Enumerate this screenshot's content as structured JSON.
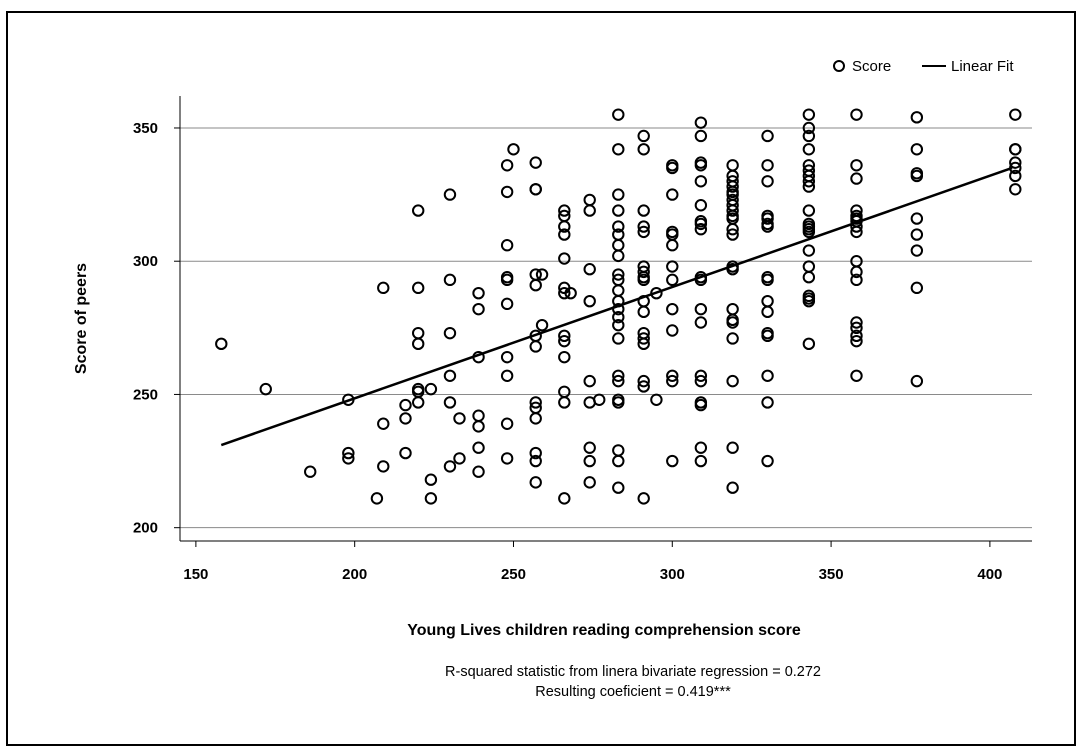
{
  "chart_data": {
    "type": "scatter",
    "title": "",
    "xlabel": "Young Lives children reading comprehension score",
    "ylabel": "Score of peers",
    "xlim": [
      145,
      412
    ],
    "ylim": [
      195,
      362
    ],
    "xticks": [
      150,
      200,
      250,
      300,
      350,
      400
    ],
    "yticks": [
      200,
      250,
      300,
      350
    ],
    "grid": "horizontal",
    "legend": {
      "placement": "top-right",
      "entries": [
        "Score",
        "Linear Fit"
      ]
    },
    "notes": [
      "R-squared statistic from linera bivariate regression = 0.272",
      "Resulting coeficient = 0.419***"
    ],
    "series": [
      {
        "name": "Score",
        "type": "scatter",
        "points": [
          [
            158,
            269
          ],
          [
            172,
            252
          ],
          [
            186,
            221
          ],
          [
            198,
            248
          ],
          [
            198,
            228
          ],
          [
            198,
            226
          ],
          [
            207,
            211
          ],
          [
            209,
            223
          ],
          [
            209,
            239
          ],
          [
            209,
            290
          ],
          [
            216,
            228
          ],
          [
            216,
            241
          ],
          [
            216,
            246
          ],
          [
            220,
            319
          ],
          [
            220,
            290
          ],
          [
            220,
            273
          ],
          [
            220,
            269
          ],
          [
            220,
            252
          ],
          [
            220,
            251
          ],
          [
            220,
            247
          ],
          [
            224,
            252
          ],
          [
            224,
            218
          ],
          [
            224,
            211
          ],
          [
            230,
            325
          ],
          [
            230,
            293
          ],
          [
            230,
            273
          ],
          [
            230,
            257
          ],
          [
            230,
            247
          ],
          [
            230,
            223
          ],
          [
            233,
            241
          ],
          [
            233,
            226
          ],
          [
            239,
            288
          ],
          [
            239,
            282
          ],
          [
            239,
            264
          ],
          [
            239,
            242
          ],
          [
            239,
            238
          ],
          [
            239,
            230
          ],
          [
            239,
            221
          ],
          [
            248,
            336
          ],
          [
            248,
            326
          ],
          [
            248,
            306
          ],
          [
            248,
            294
          ],
          [
            248,
            293
          ],
          [
            248,
            284
          ],
          [
            248,
            264
          ],
          [
            248,
            257
          ],
          [
            248,
            239
          ],
          [
            248,
            226
          ],
          [
            250,
            342
          ],
          [
            257,
            337
          ],
          [
            257,
            327
          ],
          [
            257,
            327
          ],
          [
            257,
            295
          ],
          [
            257,
            291
          ],
          [
            257,
            272
          ],
          [
            257,
            268
          ],
          [
            257,
            247
          ],
          [
            257,
            245
          ],
          [
            257,
            241
          ],
          [
            257,
            228
          ],
          [
            257,
            225
          ],
          [
            257,
            217
          ],
          [
            259,
            295
          ],
          [
            259,
            276
          ],
          [
            266,
            319
          ],
          [
            266,
            317
          ],
          [
            266,
            313
          ],
          [
            266,
            310
          ],
          [
            266,
            301
          ],
          [
            266,
            290
          ],
          [
            266,
            288
          ],
          [
            266,
            272
          ],
          [
            266,
            270
          ],
          [
            266,
            264
          ],
          [
            266,
            251
          ],
          [
            266,
            247
          ],
          [
            266,
            211
          ],
          [
            268,
            288
          ],
          [
            274,
            323
          ],
          [
            274,
            319
          ],
          [
            274,
            297
          ],
          [
            274,
            285
          ],
          [
            274,
            255
          ],
          [
            274,
            247
          ],
          [
            274,
            230
          ],
          [
            274,
            225
          ],
          [
            274,
            217
          ],
          [
            277,
            248
          ],
          [
            283,
            355
          ],
          [
            283,
            342
          ],
          [
            283,
            325
          ],
          [
            283,
            319
          ],
          [
            283,
            313
          ],
          [
            283,
            310
          ],
          [
            283,
            306
          ],
          [
            283,
            302
          ],
          [
            283,
            295
          ],
          [
            283,
            293
          ],
          [
            283,
            289
          ],
          [
            283,
            285
          ],
          [
            283,
            282
          ],
          [
            283,
            279
          ],
          [
            283,
            276
          ],
          [
            283,
            271
          ],
          [
            283,
            257
          ],
          [
            283,
            255
          ],
          [
            283,
            248
          ],
          [
            283,
            247
          ],
          [
            283,
            229
          ],
          [
            283,
            225
          ],
          [
            283,
            215
          ],
          [
            291,
            347
          ],
          [
            291,
            342
          ],
          [
            291,
            319
          ],
          [
            291,
            313
          ],
          [
            291,
            311
          ],
          [
            291,
            298
          ],
          [
            291,
            296
          ],
          [
            291,
            294
          ],
          [
            291,
            293
          ],
          [
            291,
            285
          ],
          [
            291,
            281
          ],
          [
            291,
            273
          ],
          [
            291,
            271
          ],
          [
            291,
            269
          ],
          [
            291,
            255
          ],
          [
            291,
            253
          ],
          [
            291,
            211
          ],
          [
            295,
            288
          ],
          [
            295,
            248
          ],
          [
            300,
            336
          ],
          [
            300,
            335
          ],
          [
            300,
            325
          ],
          [
            300,
            311
          ],
          [
            300,
            310
          ],
          [
            300,
            306
          ],
          [
            300,
            298
          ],
          [
            300,
            293
          ],
          [
            300,
            282
          ],
          [
            300,
            274
          ],
          [
            300,
            257
          ],
          [
            300,
            255
          ],
          [
            300,
            225
          ],
          [
            309,
            352
          ],
          [
            309,
            347
          ],
          [
            309,
            337
          ],
          [
            309,
            336
          ],
          [
            309,
            330
          ],
          [
            309,
            321
          ],
          [
            309,
            315
          ],
          [
            309,
            314
          ],
          [
            309,
            312
          ],
          [
            309,
            294
          ],
          [
            309,
            293
          ],
          [
            309,
            282
          ],
          [
            309,
            277
          ],
          [
            309,
            257
          ],
          [
            309,
            255
          ],
          [
            309,
            247
          ],
          [
            309,
            246
          ],
          [
            309,
            230
          ],
          [
            309,
            225
          ],
          [
            319,
            336
          ],
          [
            319,
            332
          ],
          [
            319,
            330
          ],
          [
            319,
            328
          ],
          [
            319,
            326
          ],
          [
            319,
            325
          ],
          [
            319,
            323
          ],
          [
            319,
            321
          ],
          [
            319,
            319
          ],
          [
            319,
            317
          ],
          [
            319,
            316
          ],
          [
            319,
            312
          ],
          [
            319,
            310
          ],
          [
            319,
            298
          ],
          [
            319,
            297
          ],
          [
            319,
            282
          ],
          [
            319,
            278
          ],
          [
            319,
            277
          ],
          [
            319,
            271
          ],
          [
            319,
            255
          ],
          [
            319,
            230
          ],
          [
            319,
            215
          ],
          [
            330,
            347
          ],
          [
            330,
            336
          ],
          [
            330,
            330
          ],
          [
            330,
            317
          ],
          [
            330,
            316
          ],
          [
            330,
            314
          ],
          [
            330,
            313
          ],
          [
            330,
            294
          ],
          [
            330,
            293
          ],
          [
            330,
            285
          ],
          [
            330,
            281
          ],
          [
            330,
            273
          ],
          [
            330,
            272
          ],
          [
            330,
            257
          ],
          [
            330,
            247
          ],
          [
            330,
            225
          ],
          [
            343,
            355
          ],
          [
            343,
            350
          ],
          [
            343,
            347
          ],
          [
            343,
            342
          ],
          [
            343,
            336
          ],
          [
            343,
            334
          ],
          [
            343,
            332
          ],
          [
            343,
            330
          ],
          [
            343,
            328
          ],
          [
            343,
            319
          ],
          [
            343,
            314
          ],
          [
            343,
            313
          ],
          [
            343,
            312
          ],
          [
            343,
            311
          ],
          [
            343,
            304
          ],
          [
            343,
            298
          ],
          [
            343,
            294
          ],
          [
            343,
            287
          ],
          [
            343,
            286
          ],
          [
            343,
            285
          ],
          [
            343,
            269
          ],
          [
            358,
            355
          ],
          [
            358,
            336
          ],
          [
            358,
            331
          ],
          [
            358,
            319
          ],
          [
            358,
            317
          ],
          [
            358,
            316
          ],
          [
            358,
            315
          ],
          [
            358,
            313
          ],
          [
            358,
            311
          ],
          [
            358,
            300
          ],
          [
            358,
            296
          ],
          [
            358,
            293
          ],
          [
            358,
            277
          ],
          [
            358,
            275
          ],
          [
            358,
            272
          ],
          [
            358,
            270
          ],
          [
            358,
            257
          ],
          [
            377,
            354
          ],
          [
            377,
            342
          ],
          [
            377,
            333
          ],
          [
            377,
            332
          ],
          [
            377,
            316
          ],
          [
            377,
            310
          ],
          [
            377,
            304
          ],
          [
            377,
            290
          ],
          [
            377,
            255
          ],
          [
            408,
            355
          ],
          [
            408,
            342
          ],
          [
            408,
            342
          ],
          [
            408,
            337
          ],
          [
            408,
            335
          ],
          [
            408,
            332
          ],
          [
            408,
            327
          ]
        ]
      },
      {
        "name": "Linear Fit",
        "type": "line",
        "points": [
          [
            158,
            231
          ],
          [
            407,
            335
          ]
        ]
      }
    ]
  }
}
